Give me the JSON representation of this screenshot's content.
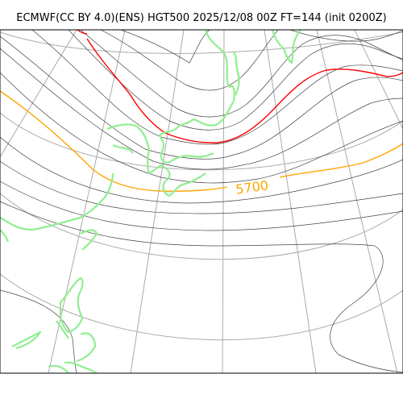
{
  "title": "ECMWF(CC BY 4.0)(ENS) HGT500 2025/12/08 00Z FT=144 (init 0200Z)",
  "contour_label": "5700",
  "colors": {
    "graticule": "#aaaaaa",
    "contour": "#444444",
    "coastline": "#90ee90",
    "highlight_5700": "#ffa500",
    "highlight_5400": "#ff0000",
    "frame": "#000000"
  }
}
